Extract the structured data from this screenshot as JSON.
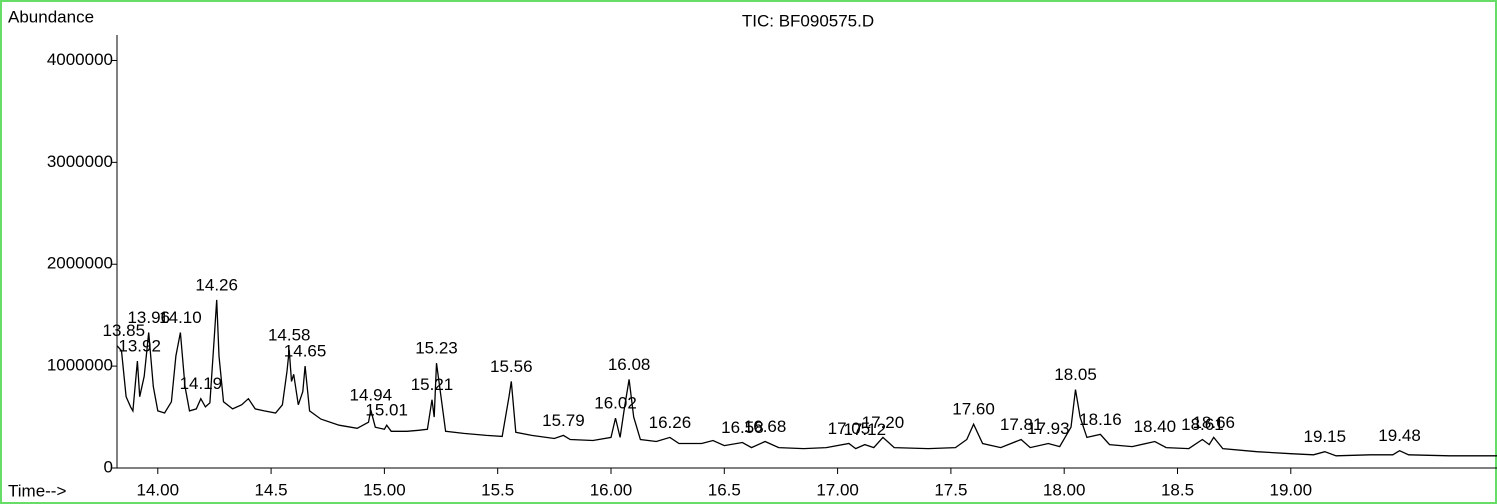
{
  "chart_data": {
    "type": "line",
    "title": "TIC: BF090575.D",
    "y_label": "Abundance",
    "x_label": "Time-->",
    "color": "#000000",
    "xlim": [
      13.82,
      19.91
    ],
    "ylim": [
      0,
      4250000
    ],
    "xticks": [
      {
        "value": 14,
        "label": "14.00"
      },
      14.5,
      {
        "value": 15,
        "label": "15.00"
      },
      15.5,
      {
        "value": 16,
        "label": "16.00"
      },
      16.5,
      {
        "value": 17,
        "label": "17.00"
      },
      17.5,
      {
        "value": 18,
        "label": "18.00"
      },
      18.5,
      {
        "value": 19,
        "label": "19.00"
      }
    ],
    "yticks": [
      0,
      1000000,
      2000000,
      3000000,
      4000000
    ],
    "x": [
      13.82,
      13.84,
      13.86,
      13.88,
      13.89,
      13.91,
      13.92,
      13.94,
      13.96,
      13.98,
      14.0,
      14.03,
      14.06,
      14.08,
      14.1,
      14.12,
      14.14,
      14.17,
      14.19,
      14.21,
      14.23,
      14.25,
      14.26,
      14.27,
      14.29,
      14.33,
      14.37,
      14.4,
      14.43,
      14.47,
      14.52,
      14.55,
      14.57,
      14.58,
      14.59,
      14.6,
      14.62,
      14.64,
      14.65,
      14.67,
      14.72,
      14.8,
      14.88,
      14.93,
      14.94,
      14.96,
      15.0,
      15.01,
      15.03,
      15.1,
      15.15,
      15.19,
      15.21,
      15.22,
      15.23,
      15.25,
      15.27,
      15.35,
      15.45,
      15.52,
      15.55,
      15.56,
      15.58,
      15.65,
      15.75,
      15.79,
      15.82,
      15.92,
      16.0,
      16.02,
      16.04,
      16.06,
      16.08,
      16.1,
      16.13,
      16.2,
      16.26,
      16.3,
      16.4,
      16.45,
      16.5,
      16.58,
      16.62,
      16.68,
      16.74,
      16.85,
      16.95,
      17.05,
      17.08,
      17.12,
      17.16,
      17.2,
      17.25,
      17.4,
      17.52,
      17.57,
      17.6,
      17.64,
      17.72,
      17.81,
      17.85,
      17.93,
      17.98,
      18.03,
      18.05,
      18.07,
      18.1,
      18.16,
      18.2,
      18.3,
      18.4,
      18.45,
      18.55,
      18.61,
      18.64,
      18.66,
      18.7,
      18.85,
      19.0,
      19.1,
      19.15,
      19.2,
      19.35,
      19.45,
      19.48,
      19.52,
      19.7,
      19.91
    ],
    "values": [
      1200000,
      1150000,
      700000,
      600000,
      560000,
      1050000,
      700000,
      900000,
      1330000,
      800000,
      560000,
      540000,
      650000,
      1100000,
      1330000,
      800000,
      560000,
      580000,
      680000,
      600000,
      640000,
      1300000,
      1650000,
      1100000,
      650000,
      580000,
      620000,
      680000,
      580000,
      560000,
      540000,
      620000,
      950000,
      1160000,
      850000,
      920000,
      620000,
      750000,
      1000000,
      560000,
      480000,
      420000,
      390000,
      450000,
      570000,
      400000,
      380000,
      420000,
      360000,
      360000,
      370000,
      380000,
      670000,
      500000,
      1030000,
      700000,
      360000,
      340000,
      320000,
      310000,
      700000,
      850000,
      350000,
      320000,
      290000,
      320000,
      280000,
      270000,
      300000,
      490000,
      300000,
      600000,
      870000,
      500000,
      280000,
      260000,
      300000,
      240000,
      240000,
      270000,
      220000,
      250000,
      200000,
      260000,
      200000,
      190000,
      200000,
      240000,
      190000,
      230000,
      200000,
      300000,
      200000,
      190000,
      200000,
      280000,
      430000,
      240000,
      200000,
      280000,
      200000,
      240000,
      210000,
      400000,
      770000,
      500000,
      300000,
      330000,
      230000,
      210000,
      260000,
      200000,
      190000,
      280000,
      230000,
      300000,
      190000,
      160000,
      140000,
      130000,
      160000,
      120000,
      130000,
      130000,
      170000,
      130000,
      120000,
      120000
    ],
    "peaks": [
      {
        "x": 13.85,
        "label": "13.85",
        "height": 1200000
      },
      {
        "x": 13.92,
        "label": "13.92",
        "height": 1050000
      },
      {
        "x": 13.96,
        "label": "13.96",
        "height": 1330000
      },
      {
        "x": 14.1,
        "label": "14.10",
        "height": 1330000
      },
      {
        "x": 14.19,
        "label": "14.19",
        "height": 680000
      },
      {
        "x": 14.26,
        "label": "14.26",
        "height": 1650000
      },
      {
        "x": 14.58,
        "label": "14.58",
        "height": 1160000
      },
      {
        "x": 14.65,
        "label": "14.65",
        "height": 1000000
      },
      {
        "x": 14.94,
        "label": "14.94",
        "height": 570000
      },
      {
        "x": 15.01,
        "label": "15.01",
        "height": 420000
      },
      {
        "x": 15.21,
        "label": "15.21",
        "height": 670000
      },
      {
        "x": 15.23,
        "label": "15.23",
        "height": 1030000
      },
      {
        "x": 15.56,
        "label": "15.56",
        "height": 850000
      },
      {
        "x": 15.79,
        "label": "15.79",
        "height": 320000
      },
      {
        "x": 16.02,
        "label": "16.02",
        "height": 490000
      },
      {
        "x": 16.08,
        "label": "16.08",
        "height": 870000
      },
      {
        "x": 16.26,
        "label": "16.26",
        "height": 300000
      },
      {
        "x": 16.58,
        "label": "16.58",
        "height": 250000
      },
      {
        "x": 16.68,
        "label": "16.68",
        "height": 260000
      },
      {
        "x": 17.05,
        "label": "17.05",
        "height": 240000
      },
      {
        "x": 17.12,
        "label": "17.12",
        "height": 230000
      },
      {
        "x": 17.2,
        "label": "17.20",
        "height": 300000
      },
      {
        "x": 17.6,
        "label": "17.60",
        "height": 430000
      },
      {
        "x": 17.81,
        "label": "17.81",
        "height": 280000
      },
      {
        "x": 17.93,
        "label": "17.93",
        "height": 240000
      },
      {
        "x": 18.05,
        "label": "18.05",
        "height": 770000
      },
      {
        "x": 18.16,
        "label": "18.16",
        "height": 330000
      },
      {
        "x": 18.4,
        "label": "18.40",
        "height": 260000
      },
      {
        "x": 18.61,
        "label": "18.61",
        "height": 280000
      },
      {
        "x": 18.66,
        "label": "18.66",
        "height": 300000
      },
      {
        "x": 19.15,
        "label": "19.15",
        "height": 160000
      },
      {
        "x": 19.48,
        "label": "19.48",
        "height": 170000
      }
    ]
  }
}
